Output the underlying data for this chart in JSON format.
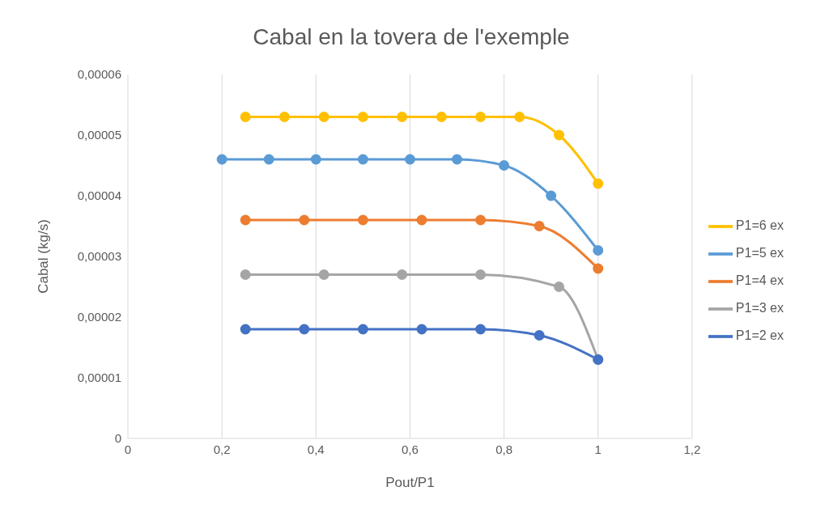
{
  "chart_data": {
    "type": "line",
    "title": "Cabal en la tovera de l'exemple",
    "xlabel": "Pout/P1",
    "ylabel": "Cabal (kg/s)",
    "xlim": [
      0,
      1.2
    ],
    "xticks": [
      0,
      {
        "value": 0.2,
        "label": "0,2"
      },
      {
        "value": 0.4,
        "label": "0,4"
      },
      {
        "value": 0.6,
        "label": "0,6"
      },
      {
        "value": 0.8,
        "label": "0,8"
      },
      1,
      {
        "value": 1.2,
        "label": "1,2"
      }
    ],
    "ylim": [
      0,
      6e-05
    ],
    "yticks": [
      0,
      {
        "value": 1e-05,
        "label": "0,00001"
      },
      {
        "value": 2e-05,
        "label": "0,00002"
      },
      {
        "value": 3e-05,
        "label": "0,00003"
      },
      {
        "value": 4e-05,
        "label": "0,00004"
      },
      {
        "value": 5e-05,
        "label": "0,00005"
      },
      {
        "value": 6e-05,
        "label": "0,00006"
      }
    ],
    "grid": "x",
    "legend": "right",
    "marker": "circle",
    "line_style": "solid",
    "series": [
      {
        "name": "P1=6 ex",
        "color": "#ffc000",
        "x": [
          0.25,
          0.333,
          0.417,
          0.5,
          0.583,
          0.667,
          0.75,
          0.833,
          0.917,
          1
        ],
        "values": [
          5.3e-05,
          5.3e-05,
          5.3e-05,
          5.3e-05,
          5.3e-05,
          5.3e-05,
          5.3e-05,
          5.3e-05,
          5e-05,
          4.2e-05
        ]
      },
      {
        "name": "P1=5 ex",
        "color": "#5b9bd5",
        "x": [
          0.2,
          0.3,
          0.4,
          0.5,
          0.6,
          0.7,
          0.8,
          0.9,
          1
        ],
        "values": [
          4.6e-05,
          4.6e-05,
          4.6e-05,
          4.6e-05,
          4.6e-05,
          4.6e-05,
          4.5e-05,
          4e-05,
          3.1e-05
        ]
      },
      {
        "name": "P1=4 ex",
        "color": "#ed7d31",
        "x": [
          0.25,
          0.375,
          0.5,
          0.625,
          0.75,
          0.875,
          1
        ],
        "values": [
          3.6e-05,
          3.6e-05,
          3.6e-05,
          3.6e-05,
          3.6e-05,
          3.5e-05,
          2.8e-05
        ]
      },
      {
        "name": "P1=3 ex",
        "color": "#a5a5a5",
        "x": [
          0.25,
          0.417,
          0.583,
          0.75,
          0.917,
          1
        ],
        "values": [
          2.7e-05,
          2.7e-05,
          2.7e-05,
          2.7e-05,
          2.5e-05,
          1.3e-05
        ]
      },
      {
        "name": "P1=2 ex",
        "color": "#4472c4",
        "x": [
          0.25,
          0.375,
          0.5,
          0.625,
          0.75,
          0.875,
          1
        ],
        "values": [
          1.8e-05,
          1.8e-05,
          1.8e-05,
          1.8e-05,
          1.8e-05,
          1.7e-05,
          1.3e-05
        ]
      }
    ]
  }
}
